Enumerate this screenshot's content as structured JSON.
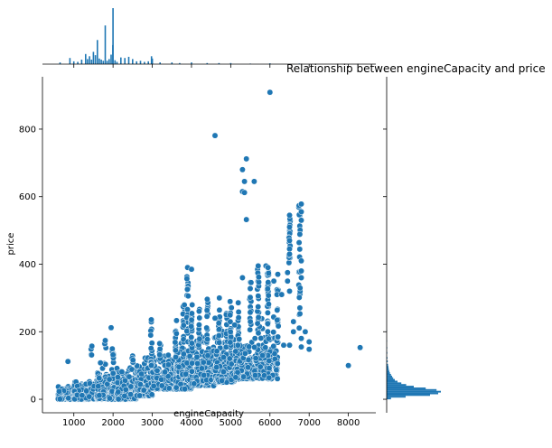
{
  "chart_data": {
    "type": "scatter",
    "title": "Relationship between engineCapacity and price",
    "xlabel": "engineCapacity",
    "ylabel": "price",
    "xlim": [
      200,
      8700
    ],
    "ylim": [
      -40,
      955
    ],
    "xticks": [
      1000,
      2000,
      3000,
      4000,
      5000,
      6000,
      7000,
      8000
    ],
    "yticks": [
      0,
      200,
      400,
      600,
      800
    ],
    "grid": false,
    "legend": "none",
    "colors": {
      "point": "#1f77b4",
      "point_edge": "#ffffff",
      "axis": "#000000"
    },
    "marginal_x": {
      "type": "histogram",
      "bins": [
        {
          "x": 650,
          "h": 0.03
        },
        {
          "x": 900,
          "h": 0.11
        },
        {
          "x": 1000,
          "h": 0.05
        },
        {
          "x": 1100,
          "h": 0.04
        },
        {
          "x": 1200,
          "h": 0.08
        },
        {
          "x": 1300,
          "h": 0.18
        },
        {
          "x": 1350,
          "h": 0.09
        },
        {
          "x": 1400,
          "h": 0.14
        },
        {
          "x": 1450,
          "h": 0.08
        },
        {
          "x": 1500,
          "h": 0.22
        },
        {
          "x": 1550,
          "h": 0.16
        },
        {
          "x": 1600,
          "h": 0.43
        },
        {
          "x": 1650,
          "h": 0.1
        },
        {
          "x": 1700,
          "h": 0.08
        },
        {
          "x": 1750,
          "h": 0.06
        },
        {
          "x": 1800,
          "h": 0.69
        },
        {
          "x": 1850,
          "h": 0.06
        },
        {
          "x": 1900,
          "h": 0.09
        },
        {
          "x": 1950,
          "h": 0.17
        },
        {
          "x": 1995,
          "h": 0.34
        },
        {
          "x": 2000,
          "h": 1.0
        },
        {
          "x": 2050,
          "h": 0.07
        },
        {
          "x": 2100,
          "h": 0.04
        },
        {
          "x": 2200,
          "h": 0.12
        },
        {
          "x": 2300,
          "h": 0.11
        },
        {
          "x": 2400,
          "h": 0.13
        },
        {
          "x": 2500,
          "h": 0.09
        },
        {
          "x": 2600,
          "h": 0.05
        },
        {
          "x": 2700,
          "h": 0.06
        },
        {
          "x": 2800,
          "h": 0.04
        },
        {
          "x": 2900,
          "h": 0.05
        },
        {
          "x": 2980,
          "h": 0.14
        },
        {
          "x": 3000,
          "h": 0.1
        },
        {
          "x": 3200,
          "h": 0.03
        },
        {
          "x": 3500,
          "h": 0.03
        },
        {
          "x": 3700,
          "h": 0.02
        },
        {
          "x": 4000,
          "h": 0.03
        },
        {
          "x": 4400,
          "h": 0.02
        },
        {
          "x": 4700,
          "h": 0.02
        },
        {
          "x": 5000,
          "h": 0.02
        },
        {
          "x": 5500,
          "h": 0.01
        },
        {
          "x": 6000,
          "h": 0.015
        },
        {
          "x": 6750,
          "h": 0.01
        }
      ]
    },
    "marginal_y": {
      "type": "histogram",
      "bins": [
        {
          "y": 0,
          "w": 0.08
        },
        {
          "y": 5,
          "w": 0.35
        },
        {
          "y": 10,
          "w": 0.8
        },
        {
          "y": 15,
          "w": 0.95
        },
        {
          "y": 20,
          "w": 1.0
        },
        {
          "y": 25,
          "w": 0.92
        },
        {
          "y": 30,
          "w": 0.72
        },
        {
          "y": 35,
          "w": 0.5
        },
        {
          "y": 40,
          "w": 0.36
        },
        {
          "y": 45,
          "w": 0.27
        },
        {
          "y": 50,
          "w": 0.2
        },
        {
          "y": 55,
          "w": 0.15
        },
        {
          "y": 60,
          "w": 0.12
        },
        {
          "y": 65,
          "w": 0.1
        },
        {
          "y": 70,
          "w": 0.08
        },
        {
          "y": 75,
          "w": 0.06
        },
        {
          "y": 80,
          "w": 0.05
        },
        {
          "y": 85,
          "w": 0.04
        },
        {
          "y": 90,
          "w": 0.035
        },
        {
          "y": 95,
          "w": 0.03
        },
        {
          "y": 100,
          "w": 0.025
        },
        {
          "y": 110,
          "w": 0.02
        },
        {
          "y": 120,
          "w": 0.015
        },
        {
          "y": 135,
          "w": 0.012
        },
        {
          "y": 150,
          "w": 0.01
        },
        {
          "y": 170,
          "w": 0.008
        },
        {
          "y": 200,
          "w": 0.005
        }
      ]
    },
    "clusters": [
      {
        "x": [
          600,
          1000
        ],
        "y": [
          0,
          45
        ],
        "n": 140
      },
      {
        "x": [
          1000,
          1600
        ],
        "y": [
          0,
          60
        ],
        "n": 380
      },
      {
        "x": [
          1600,
          2100
        ],
        "y": [
          0,
          100
        ],
        "n": 420
      },
      {
        "x": [
          2100,
          2600
        ],
        "y": [
          0,
          100
        ],
        "n": 300
      },
      {
        "x": [
          2600,
          3000
        ],
        "y": [
          10,
          130
        ],
        "n": 210
      },
      {
        "x": [
          3000,
          3600
        ],
        "y": [
          30,
          140
        ],
        "n": 200
      },
      {
        "x": [
          3600,
          4000
        ],
        "y": [
          30,
          190
        ],
        "n": 220
      },
      {
        "x": [
          4000,
          4600
        ],
        "y": [
          40,
          210
        ],
        "n": 200
      },
      {
        "x": [
          4600,
          5100
        ],
        "y": [
          50,
          220
        ],
        "n": 180
      },
      {
        "x": [
          5100,
          5600
        ],
        "y": [
          60,
          200
        ],
        "n": 130
      },
      {
        "x": [
          5600,
          6200
        ],
        "y": [
          60,
          260
        ],
        "n": 160
      }
    ],
    "columns": [
      {
        "x": 1450,
        "y": [
          130,
          160
        ],
        "n": 5
      },
      {
        "x": 1800,
        "y": [
          100,
          175
        ],
        "n": 6
      },
      {
        "x": 2000,
        "y": [
          100,
          160
        ],
        "n": 8
      },
      {
        "x": 2500,
        "y": [
          90,
          150
        ],
        "n": 5
      },
      {
        "x": 2980,
        "y": [
          100,
          250
        ],
        "n": 16
      },
      {
        "x": 3200,
        "y": [
          120,
          180
        ],
        "n": 6
      },
      {
        "x": 3600,
        "y": [
          120,
          240
        ],
        "n": 10
      },
      {
        "x": 3800,
        "y": [
          150,
          280
        ],
        "n": 12
      },
      {
        "x": 3900,
        "y": [
          150,
          380
        ],
        "n": 20
      },
      {
        "x": 4000,
        "y": [
          150,
          290
        ],
        "n": 14
      },
      {
        "x": 4200,
        "y": [
          150,
          280
        ],
        "n": 10
      },
      {
        "x": 4400,
        "y": [
          150,
          300
        ],
        "n": 12
      },
      {
        "x": 4700,
        "y": [
          150,
          300
        ],
        "n": 12
      },
      {
        "x": 4900,
        "y": [
          150,
          260
        ],
        "n": 10
      },
      {
        "x": 5000,
        "y": [
          150,
          300
        ],
        "n": 12
      },
      {
        "x": 5200,
        "y": [
          150,
          330
        ],
        "n": 12
      },
      {
        "x": 5500,
        "y": [
          200,
          350
        ],
        "n": 12
      },
      {
        "x": 5700,
        "y": [
          200,
          390
        ],
        "n": 16
      },
      {
        "x": 5950,
        "y": [
          200,
          380
        ],
        "n": 28
      },
      {
        "x": 6200,
        "y": [
          180,
          370
        ],
        "n": 14
      },
      {
        "x": 6500,
        "y": [
          400,
          540
        ],
        "n": 16
      },
      {
        "x": 6750,
        "y": [
          200,
          580
        ],
        "n": 22
      }
    ],
    "points": [
      [
        850,
        112
      ],
      [
        1950,
        212
      ],
      [
        1680,
        108
      ],
      [
        4600,
        781
      ],
      [
        6000,
        909
      ],
      [
        5400,
        712
      ],
      [
        5300,
        680
      ],
      [
        5350,
        645
      ],
      [
        5600,
        645
      ],
      [
        5300,
        615
      ],
      [
        5350,
        612
      ],
      [
        5400,
        532
      ],
      [
        6800,
        578
      ],
      [
        6800,
        555
      ],
      [
        6800,
        530
      ],
      [
        6500,
        545
      ],
      [
        6500,
        510
      ],
      [
        6500,
        470
      ],
      [
        6500,
        445
      ],
      [
        6500,
        430
      ],
      [
        6800,
        410
      ],
      [
        6800,
        380
      ],
      [
        6800,
        360
      ],
      [
        6450,
        375
      ],
      [
        6450,
        350
      ],
      [
        6500,
        320
      ],
      [
        6200,
        370
      ],
      [
        6300,
        310
      ],
      [
        6600,
        230
      ],
      [
        6600,
        200
      ],
      [
        6350,
        160
      ],
      [
        6500,
        160
      ],
      [
        6800,
        180
      ],
      [
        6800,
        155
      ],
      [
        6900,
        200
      ],
      [
        7000,
        170
      ],
      [
        7000,
        148
      ],
      [
        8000,
        100
      ],
      [
        8300,
        153
      ],
      [
        3900,
        390
      ],
      [
        4000,
        385
      ],
      [
        5300,
        360
      ],
      [
        5700,
        395
      ],
      [
        5900,
        395
      ],
      [
        5950,
        390
      ],
      [
        6100,
        350
      ],
      [
        4600,
        240
      ],
      [
        5100,
        220
      ],
      [
        5500,
        230
      ]
    ]
  }
}
